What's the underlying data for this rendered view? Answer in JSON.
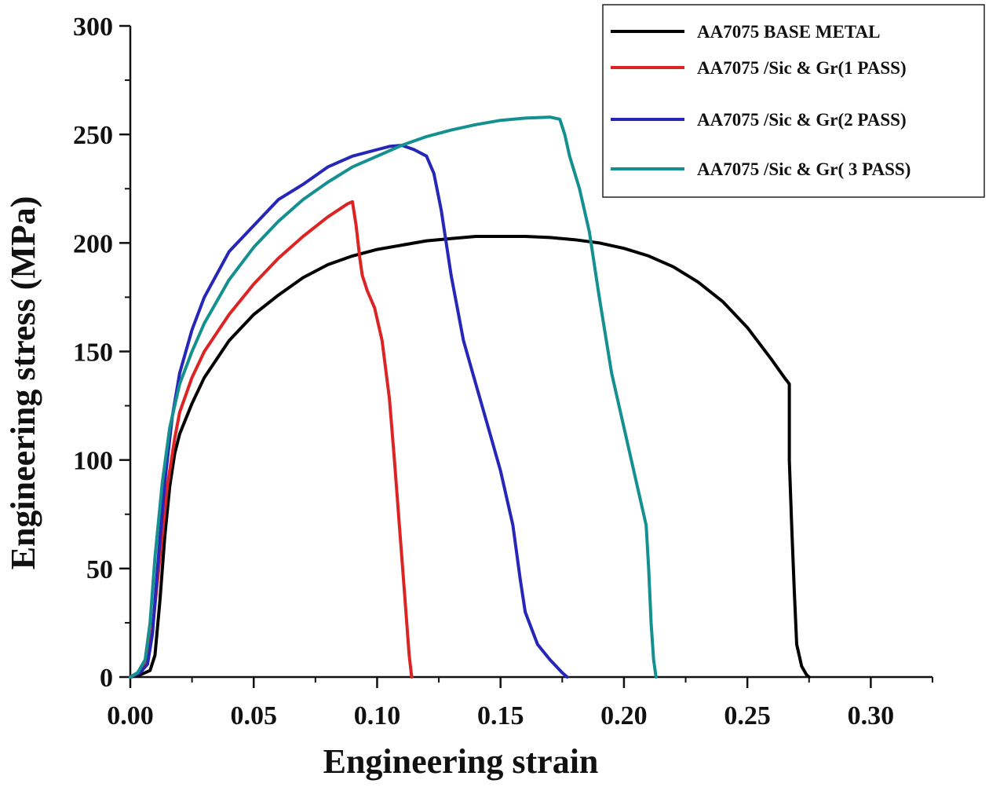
{
  "chart_data": {
    "type": "line",
    "title": "",
    "xlabel": "Engineering strain",
    "ylabel": "Engineering stress (MPa)",
    "xlim": [
      0,
      0.325
    ],
    "ylim": [
      0,
      300
    ],
    "xticks": [
      0.0,
      0.05,
      0.1,
      0.15,
      0.2,
      0.25,
      0.3
    ],
    "xtick_labels": [
      "0.00",
      "0.05",
      "0.10",
      "0.15",
      "0.20",
      "0.25",
      "0.30"
    ],
    "yticks": [
      0,
      50,
      100,
      150,
      200,
      250,
      300
    ],
    "ytick_labels": [
      "0",
      "50",
      "100",
      "150",
      "200",
      "250",
      "300"
    ],
    "grid": false,
    "legend_position": "top-right",
    "series": [
      {
        "name": "AA7075 BASE METAL",
        "color": "#000000",
        "points": [
          [
            0,
            0
          ],
          [
            0.004,
            1
          ],
          [
            0.008,
            3
          ],
          [
            0.01,
            10
          ],
          [
            0.012,
            35
          ],
          [
            0.014,
            65
          ],
          [
            0.016,
            88
          ],
          [
            0.018,
            103
          ],
          [
            0.02,
            112
          ],
          [
            0.025,
            126
          ],
          [
            0.03,
            138
          ],
          [
            0.04,
            155
          ],
          [
            0.05,
            167
          ],
          [
            0.06,
            176
          ],
          [
            0.07,
            184
          ],
          [
            0.08,
            190
          ],
          [
            0.09,
            194
          ],
          [
            0.1,
            197
          ],
          [
            0.11,
            199
          ],
          [
            0.12,
            201
          ],
          [
            0.13,
            202
          ],
          [
            0.14,
            203
          ],
          [
            0.15,
            203
          ],
          [
            0.16,
            203
          ],
          [
            0.17,
            202.5
          ],
          [
            0.18,
            201.5
          ],
          [
            0.19,
            200
          ],
          [
            0.2,
            197.5
          ],
          [
            0.21,
            194
          ],
          [
            0.22,
            189
          ],
          [
            0.23,
            182
          ],
          [
            0.24,
            173
          ],
          [
            0.25,
            161
          ],
          [
            0.26,
            146
          ],
          [
            0.265,
            138
          ],
          [
            0.267,
            135
          ],
          [
            0.267,
            100
          ],
          [
            0.268,
            68
          ],
          [
            0.269,
            40
          ],
          [
            0.27,
            15
          ],
          [
            0.272,
            5
          ],
          [
            0.274,
            1
          ],
          [
            0.275,
            0
          ]
        ]
      },
      {
        "name": "AA7075 /Sic & Gr(1 PASS)",
        "color": "#dd2424",
        "points": [
          [
            0,
            0
          ],
          [
            0.003,
            2
          ],
          [
            0.006,
            7
          ],
          [
            0.009,
            22
          ],
          [
            0.012,
            55
          ],
          [
            0.015,
            88
          ],
          [
            0.018,
            110
          ],
          [
            0.02,
            122
          ],
          [
            0.025,
            138
          ],
          [
            0.03,
            150
          ],
          [
            0.04,
            167
          ],
          [
            0.05,
            181
          ],
          [
            0.06,
            193
          ],
          [
            0.07,
            203
          ],
          [
            0.08,
            212
          ],
          [
            0.088,
            218
          ],
          [
            0.09,
            219
          ],
          [
            0.0915,
            208
          ],
          [
            0.093,
            193
          ],
          [
            0.094,
            185
          ],
          [
            0.096,
            178
          ],
          [
            0.099,
            170
          ],
          [
            0.102,
            155
          ],
          [
            0.105,
            128
          ],
          [
            0.107,
            100
          ],
          [
            0.109,
            70
          ],
          [
            0.111,
            40
          ],
          [
            0.113,
            10
          ],
          [
            0.114,
            0
          ]
        ]
      },
      {
        "name": "AA7075 /Sic & Gr(2 PASS)",
        "color": "#2626b8",
        "points": [
          [
            0,
            0
          ],
          [
            0.004,
            2
          ],
          [
            0.007,
            6
          ],
          [
            0.009,
            20
          ],
          [
            0.011,
            50
          ],
          [
            0.014,
            90
          ],
          [
            0.017,
            120
          ],
          [
            0.02,
            140
          ],
          [
            0.025,
            160
          ],
          [
            0.03,
            175
          ],
          [
            0.04,
            196
          ],
          [
            0.05,
            208
          ],
          [
            0.06,
            220
          ],
          [
            0.07,
            227
          ],
          [
            0.08,
            235
          ],
          [
            0.09,
            240
          ],
          [
            0.1,
            243
          ],
          [
            0.105,
            244.5
          ],
          [
            0.11,
            245
          ],
          [
            0.115,
            243
          ],
          [
            0.12,
            240
          ],
          [
            0.123,
            232
          ],
          [
            0.126,
            215
          ],
          [
            0.13,
            185
          ],
          [
            0.135,
            155
          ],
          [
            0.14,
            135
          ],
          [
            0.145,
            115
          ],
          [
            0.15,
            95
          ],
          [
            0.155,
            70
          ],
          [
            0.158,
            45
          ],
          [
            0.16,
            30
          ],
          [
            0.165,
            15
          ],
          [
            0.17,
            8
          ],
          [
            0.175,
            2
          ],
          [
            0.177,
            0
          ]
        ]
      },
      {
        "name": "AA7075 /Sic & Gr( 3 PASS)",
        "color": "#159090",
        "points": [
          [
            0,
            0
          ],
          [
            0.003,
            2
          ],
          [
            0.006,
            8
          ],
          [
            0.008,
            25
          ],
          [
            0.01,
            55
          ],
          [
            0.013,
            90
          ],
          [
            0.016,
            115
          ],
          [
            0.02,
            135
          ],
          [
            0.025,
            150
          ],
          [
            0.03,
            163
          ],
          [
            0.04,
            183
          ],
          [
            0.05,
            198
          ],
          [
            0.06,
            210
          ],
          [
            0.07,
            220
          ],
          [
            0.08,
            228
          ],
          [
            0.09,
            235
          ],
          [
            0.1,
            240
          ],
          [
            0.11,
            245
          ],
          [
            0.12,
            249
          ],
          [
            0.13,
            252
          ],
          [
            0.14,
            254.5
          ],
          [
            0.15,
            256.5
          ],
          [
            0.16,
            257.5
          ],
          [
            0.17,
            258
          ],
          [
            0.174,
            257
          ],
          [
            0.176,
            250
          ],
          [
            0.178,
            240
          ],
          [
            0.182,
            225
          ],
          [
            0.186,
            205
          ],
          [
            0.19,
            175
          ],
          [
            0.195,
            140
          ],
          [
            0.2,
            115
          ],
          [
            0.205,
            90
          ],
          [
            0.209,
            70
          ],
          [
            0.21,
            50
          ],
          [
            0.211,
            25
          ],
          [
            0.212,
            8
          ],
          [
            0.213,
            0
          ]
        ]
      }
    ]
  }
}
